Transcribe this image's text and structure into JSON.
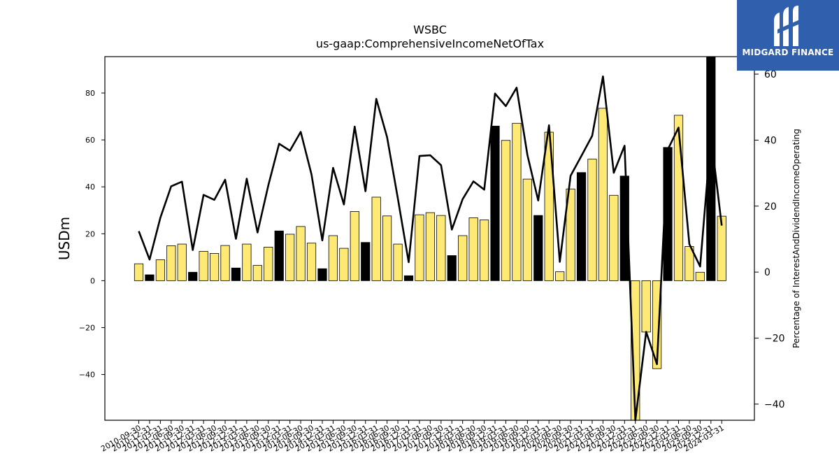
{
  "chart_data": {
    "type": "bar",
    "title": "WSBC",
    "subtitle": "us-gaap:ComprehensiveIncomeNetOfTax",
    "ylabel": "USDm",
    "y2label": "Percentage of InterestAndDividendIncomeOperating",
    "ylim": [
      -59.5,
      95.5
    ],
    "y2lim": [
      -44.9,
      65.3
    ],
    "yticks": [
      -40,
      -20,
      0,
      20,
      40,
      60,
      80
    ],
    "y2ticks": [
      -40,
      -20,
      0,
      20,
      40,
      60
    ],
    "grid": false,
    "categories": [
      "2010-09-30",
      "2010-12-31",
      "2011-03-31",
      "2011-06-30",
      "2011-09-30",
      "2011-12-31",
      "2012-03-31",
      "2012-06-30",
      "2012-09-30",
      "2012-12-31",
      "2013-03-31",
      "2013-06-30",
      "2013-09-30",
      "2013-12-31",
      "2014-03-31",
      "2014-06-30",
      "2014-09-30",
      "2014-12-31",
      "2015-03-31",
      "2015-06-30",
      "2015-09-30",
      "2015-12-31",
      "2016-03-31",
      "2016-06-30",
      "2016-09-30",
      "2016-12-31",
      "2017-03-31",
      "2017-06-30",
      "2017-09-30",
      "2017-12-31",
      "2018-03-31",
      "2018-06-30",
      "2018-09-30",
      "2018-12-31",
      "2019-03-31",
      "2019-06-30",
      "2019-09-30",
      "2019-12-31",
      "2020-03-31",
      "2020-06-30",
      "2020-09-30",
      "2020-12-31",
      "2021-03-31",
      "2021-06-30",
      "2021-09-30",
      "2021-12-31",
      "2022-03-31",
      "2022-06-30",
      "2022-09-30",
      "2022-12-31",
      "2023-03-31",
      "2023-06-30",
      "2023-09-30",
      "2023-12-31",
      "2024-03-31"
    ],
    "series": [
      {
        "values": [
          7.2,
          2.5,
          8.9,
          14.9,
          15.6,
          3.6,
          12.5,
          11.6,
          15.0,
          5.4,
          15.6,
          6.5,
          14.3,
          21.2,
          19.8,
          23.1,
          16.0,
          5.1,
          19.2,
          13.8,
          29.5,
          16.3,
          35.6,
          27.6,
          15.6,
          2.1,
          28.1,
          29.0,
          27.8,
          10.7,
          19.2,
          26.8,
          25.9,
          65.9,
          59.8,
          67.1,
          43.3,
          27.8,
          63.3,
          3.8,
          39.1,
          46.1,
          51.8,
          73.5,
          36.4,
          44.6,
          -59.5,
          -21.9,
          -37.5,
          56.8,
          70.5,
          14.6,
          3.6,
          95.5,
          27.5
        ],
        "highlight": [
          false,
          true,
          false,
          false,
          false,
          true,
          false,
          false,
          false,
          true,
          false,
          false,
          false,
          true,
          false,
          false,
          false,
          true,
          false,
          false,
          false,
          true,
          false,
          false,
          false,
          true,
          false,
          false,
          false,
          true,
          false,
          false,
          false,
          true,
          false,
          false,
          false,
          true,
          false,
          false,
          false,
          true,
          false,
          false,
          false,
          true,
          false,
          false,
          false,
          true,
          false,
          false,
          false,
          true,
          false
        ]
      },
      {
        "axis": "right",
        "type": "line",
        "values": [
          12.4,
          3.8,
          16.5,
          26.0,
          27.4,
          6.7,
          23.4,
          21.9,
          28.0,
          10.1,
          28.3,
          12.0,
          26.3,
          38.9,
          36.8,
          42.5,
          29.6,
          9.6,
          31.6,
          20.5,
          44.1,
          24.5,
          52.5,
          40.9,
          22.3,
          3.0,
          35.2,
          35.4,
          32.4,
          12.9,
          22.1,
          27.5,
          25.0,
          54.1,
          50.3,
          55.9,
          35.5,
          21.7,
          44.5,
          3.1,
          29.2,
          35.2,
          41.3,
          59.3,
          30.1,
          38.3,
          -44.9,
          -18.1,
          -27.9,
          37.1,
          43.8,
          8.5,
          1.7,
          41.3,
          14.1
        ]
      }
    ],
    "colors": {
      "bar_fill": "#fde974",
      "bar_highlight": "#000000",
      "line": "#000000"
    }
  },
  "logo": {
    "text": "MIDGARD FINANCE",
    "background": "#2f5fad"
  }
}
